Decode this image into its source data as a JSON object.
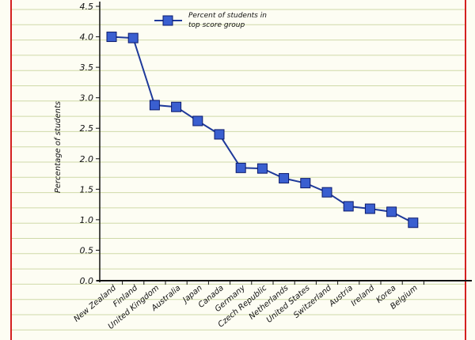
{
  "chart_data": {
    "type": "line",
    "title": "",
    "xlabel": "",
    "ylabel": "Percentage of students",
    "ylim": [
      0,
      4.5
    ],
    "yticks": [
      "0.0",
      "0.5",
      "1.0",
      "1.5",
      "2.0",
      "2.5",
      "3.0",
      "3.5",
      "4.0",
      "4.5"
    ],
    "grid": true,
    "legend_position": "top",
    "categories": [
      "New Zealand",
      "Finland",
      "United Kingdom",
      "Australia",
      "Japan",
      "Canada",
      "Germany",
      "Czech Republic",
      "Netherlands",
      "United States",
      "Switzerland",
      "Austria",
      "Ireland",
      "Korea",
      "Belgium"
    ],
    "series": [
      {
        "name": "Percent of students in top score group",
        "values": [
          4.0,
          3.98,
          2.88,
          2.85,
          2.62,
          2.4,
          1.85,
          1.84,
          1.68,
          1.6,
          1.45,
          1.22,
          1.18,
          1.13,
          0.95
        ]
      }
    ],
    "colors": {
      "line": "#1f3a9a",
      "marker_fill": "#3a5fd0",
      "marker_stroke": "#0b1a6b",
      "grid": "#cfd9a8",
      "left_border": "#d42020",
      "right_border": "#d42020",
      "background": "#fdfdf3"
    }
  }
}
